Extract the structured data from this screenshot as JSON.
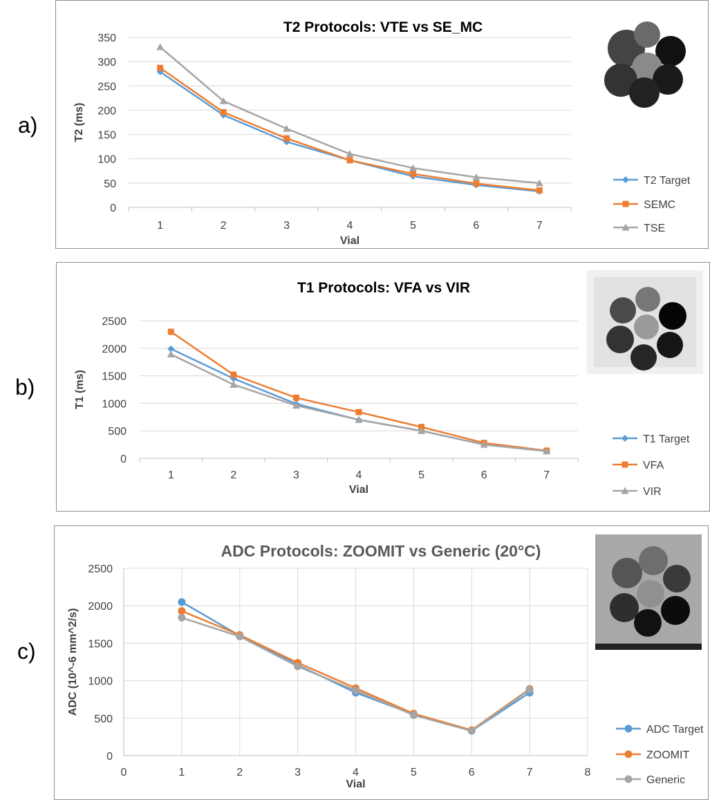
{
  "panel_labels": [
    "a)",
    "b)",
    "c)"
  ],
  "chart_data": [
    {
      "type": "line",
      "title": "T2 Protocols: VTE vs SE_MC",
      "xlabel": "Vial",
      "ylabel": "T2 (ms)",
      "ylim": [
        0,
        350
      ],
      "y_ticks": [
        "0",
        "50",
        "100",
        "150",
        "200",
        "250",
        "300",
        "350"
      ],
      "categories": [
        "1",
        "2",
        "3",
        "4",
        "5",
        "6",
        "7"
      ],
      "grid": true,
      "legend": "right",
      "series": [
        {
          "name": "T2 Target",
          "color": "#5B9BD5",
          "marker": "diamond",
          "values": [
            279,
            190,
            135,
            97,
            64,
            46,
            33
          ]
        },
        {
          "name": "SEMC",
          "color": "#ED7D31",
          "marker": "square",
          "values": [
            287,
            196,
            142,
            97,
            69,
            49,
            35
          ]
        },
        {
          "name": "TSE",
          "color": "#A5A5A5",
          "marker": "triangle",
          "values": [
            330,
            219,
            162,
            110,
            81,
            62,
            50
          ]
        }
      ]
    },
    {
      "type": "line",
      "title": "T1 Protocols: VFA vs VIR",
      "xlabel": "Vial",
      "ylabel": "T1 (ms)",
      "ylim": [
        0,
        2500
      ],
      "y_ticks": [
        "0",
        "500",
        "1000",
        "1500",
        "2000",
        "2500"
      ],
      "categories": [
        "1",
        "2",
        "3",
        "4",
        "5",
        "6",
        "7"
      ],
      "grid": true,
      "legend": "right",
      "series": [
        {
          "name": "T1 Target",
          "color": "#5B9BD5",
          "marker": "diamond",
          "values": [
            1990,
            1450,
            990,
            700,
            500,
            250,
            130
          ]
        },
        {
          "name": "VFA",
          "color": "#ED7D31",
          "marker": "square",
          "values": [
            2300,
            1520,
            1100,
            840,
            570,
            280,
            140
          ]
        },
        {
          "name": "VIR",
          "color": "#A5A5A5",
          "marker": "triangle",
          "values": [
            1890,
            1340,
            960,
            700,
            500,
            250,
            130
          ]
        }
      ]
    },
    {
      "type": "scatter",
      "title": "ADC Protocols: ZOOMIT vs Generic (20°C)",
      "xlabel": "Vial",
      "ylabel": "ADC (10^-6 mm^2/s)",
      "xlim": [
        0,
        8
      ],
      "ylim": [
        0,
        2500
      ],
      "x_ticks": [
        "0",
        "1",
        "2",
        "3",
        "4",
        "5",
        "6",
        "7",
        "8"
      ],
      "y_ticks": [
        "0",
        "500",
        "1000",
        "1500",
        "2000",
        "2500"
      ],
      "x": [
        1,
        2,
        3,
        4,
        5,
        6,
        7
      ],
      "grid": true,
      "legend": "right",
      "series": [
        {
          "name": "ADC Target",
          "color": "#5B9BD5",
          "marker": "circle",
          "values": [
            2050,
            1600,
            1210,
            840,
            550,
            330,
            840
          ]
        },
        {
          "name": "ZOOMIT",
          "color": "#ED7D31",
          "marker": "circle",
          "values": [
            1930,
            1610,
            1240,
            900,
            560,
            340,
            890
          ]
        },
        {
          "name": "Generic",
          "color": "#A5A5A5",
          "marker": "circle",
          "values": [
            1840,
            1590,
            1190,
            870,
            540,
            330,
            880
          ]
        }
      ]
    }
  ]
}
